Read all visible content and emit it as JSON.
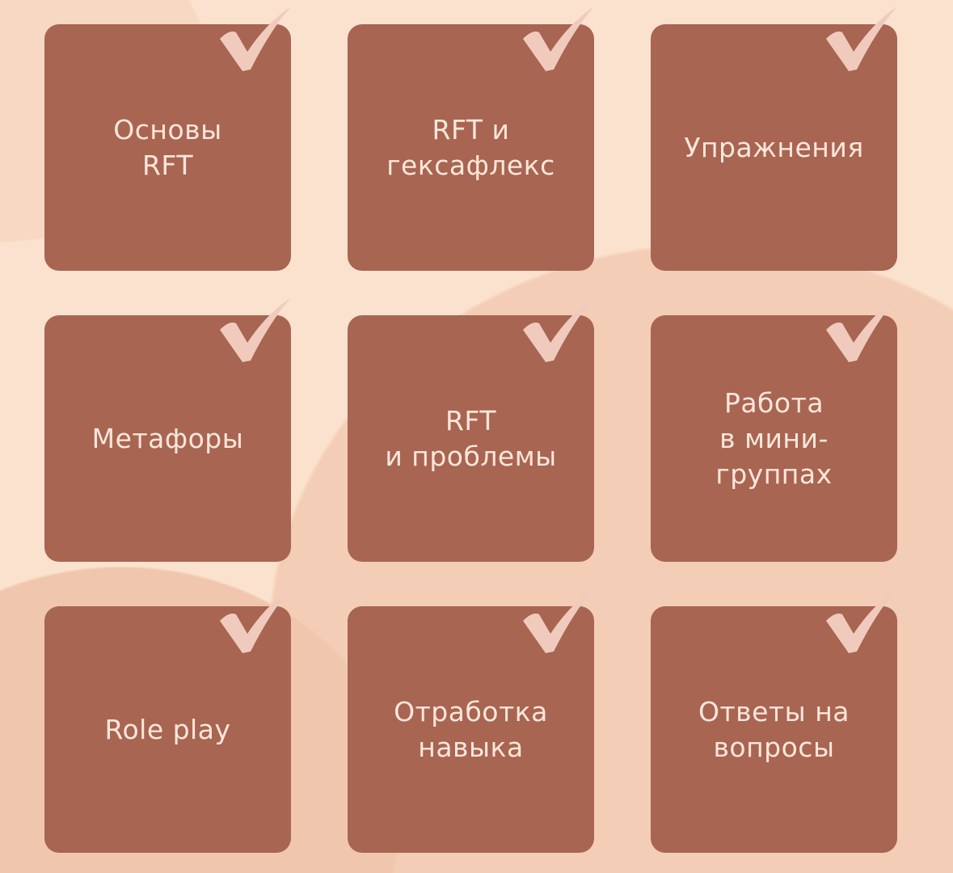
{
  "colors": {
    "background": "#fbe2cf",
    "tile": "#a86552",
    "check": "#f0cbbd",
    "text": "#fbe6da"
  },
  "tiles": [
    {
      "label": "Основы\nRFT",
      "icon": "checkmark-icon"
    },
    {
      "label": "RFT и\nгексафлекс",
      "icon": "checkmark-icon"
    },
    {
      "label": "Упражнения",
      "icon": "checkmark-icon"
    },
    {
      "label": "Метафоры",
      "icon": "checkmark-icon"
    },
    {
      "label": "RFT\nи проблемы",
      "icon": "checkmark-icon"
    },
    {
      "label": "Работа\nв мини-\nгруппах",
      "icon": "checkmark-icon"
    },
    {
      "label": "Role play",
      "icon": "checkmark-icon"
    },
    {
      "label": "Отработка\nнавыка",
      "icon": "checkmark-icon"
    },
    {
      "label": "Ответы на\nвопросы",
      "icon": "checkmark-icon"
    }
  ]
}
